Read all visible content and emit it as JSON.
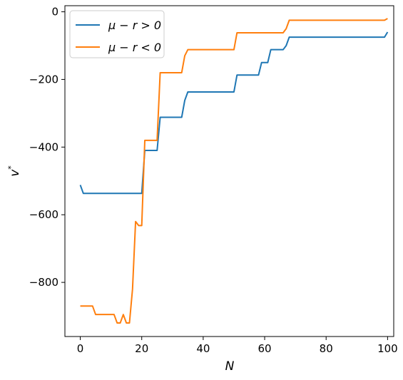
{
  "chart_data": {
    "type": "line",
    "title": "",
    "xlabel": "N",
    "ylabel": "v*",
    "xlim": [
      -5,
      102
    ],
    "ylim": [
      -960,
      18
    ],
    "xticks": [
      0,
      20,
      40,
      60,
      80,
      100
    ],
    "yticks": [
      0,
      -200,
      -400,
      -600,
      -800
    ],
    "x_tick_labels": [
      "0",
      "20",
      "40",
      "60",
      "80",
      "100"
    ],
    "y_tick_labels": [
      "0",
      "−200",
      "−400",
      "−600",
      "−800"
    ],
    "grid": false,
    "legend_position": "upper-left",
    "series": [
      {
        "name": "μ − r > 0",
        "color": "#1f77b4",
        "points": [
          [
            0,
            -512
          ],
          [
            1,
            -537
          ],
          [
            19,
            -537
          ],
          [
            20,
            -537
          ],
          [
            21,
            -410
          ],
          [
            25,
            -410
          ],
          [
            26,
            -312
          ],
          [
            33,
            -312
          ],
          [
            34,
            -262
          ],
          [
            35,
            -237
          ],
          [
            50,
            -237
          ],
          [
            51,
            -187
          ],
          [
            58,
            -187
          ],
          [
            59,
            -150
          ],
          [
            61,
            -150
          ],
          [
            62,
            -112
          ],
          [
            66,
            -112
          ],
          [
            67,
            -100
          ],
          [
            68,
            -75
          ],
          [
            99,
            -75
          ],
          [
            100,
            -60
          ]
        ]
      },
      {
        "name": "μ − r < 0",
        "color": "#ff7f0e",
        "points": [
          [
            0,
            -870
          ],
          [
            4,
            -870
          ],
          [
            5,
            -895
          ],
          [
            11,
            -895
          ],
          [
            12,
            -920
          ],
          [
            13,
            -920
          ],
          [
            14,
            -895
          ],
          [
            15,
            -920
          ],
          [
            16,
            -920
          ],
          [
            17,
            -820
          ],
          [
            18,
            -620
          ],
          [
            19,
            -632
          ],
          [
            20,
            -632
          ],
          [
            21,
            -380
          ],
          [
            25,
            -380
          ],
          [
            26,
            -180
          ],
          [
            33,
            -180
          ],
          [
            34,
            -130
          ],
          [
            35,
            -112
          ],
          [
            50,
            -112
          ],
          [
            51,
            -62
          ],
          [
            66,
            -62
          ],
          [
            67,
            -50
          ],
          [
            68,
            -25
          ],
          [
            99,
            -25
          ],
          [
            100,
            -20
          ]
        ]
      }
    ]
  }
}
